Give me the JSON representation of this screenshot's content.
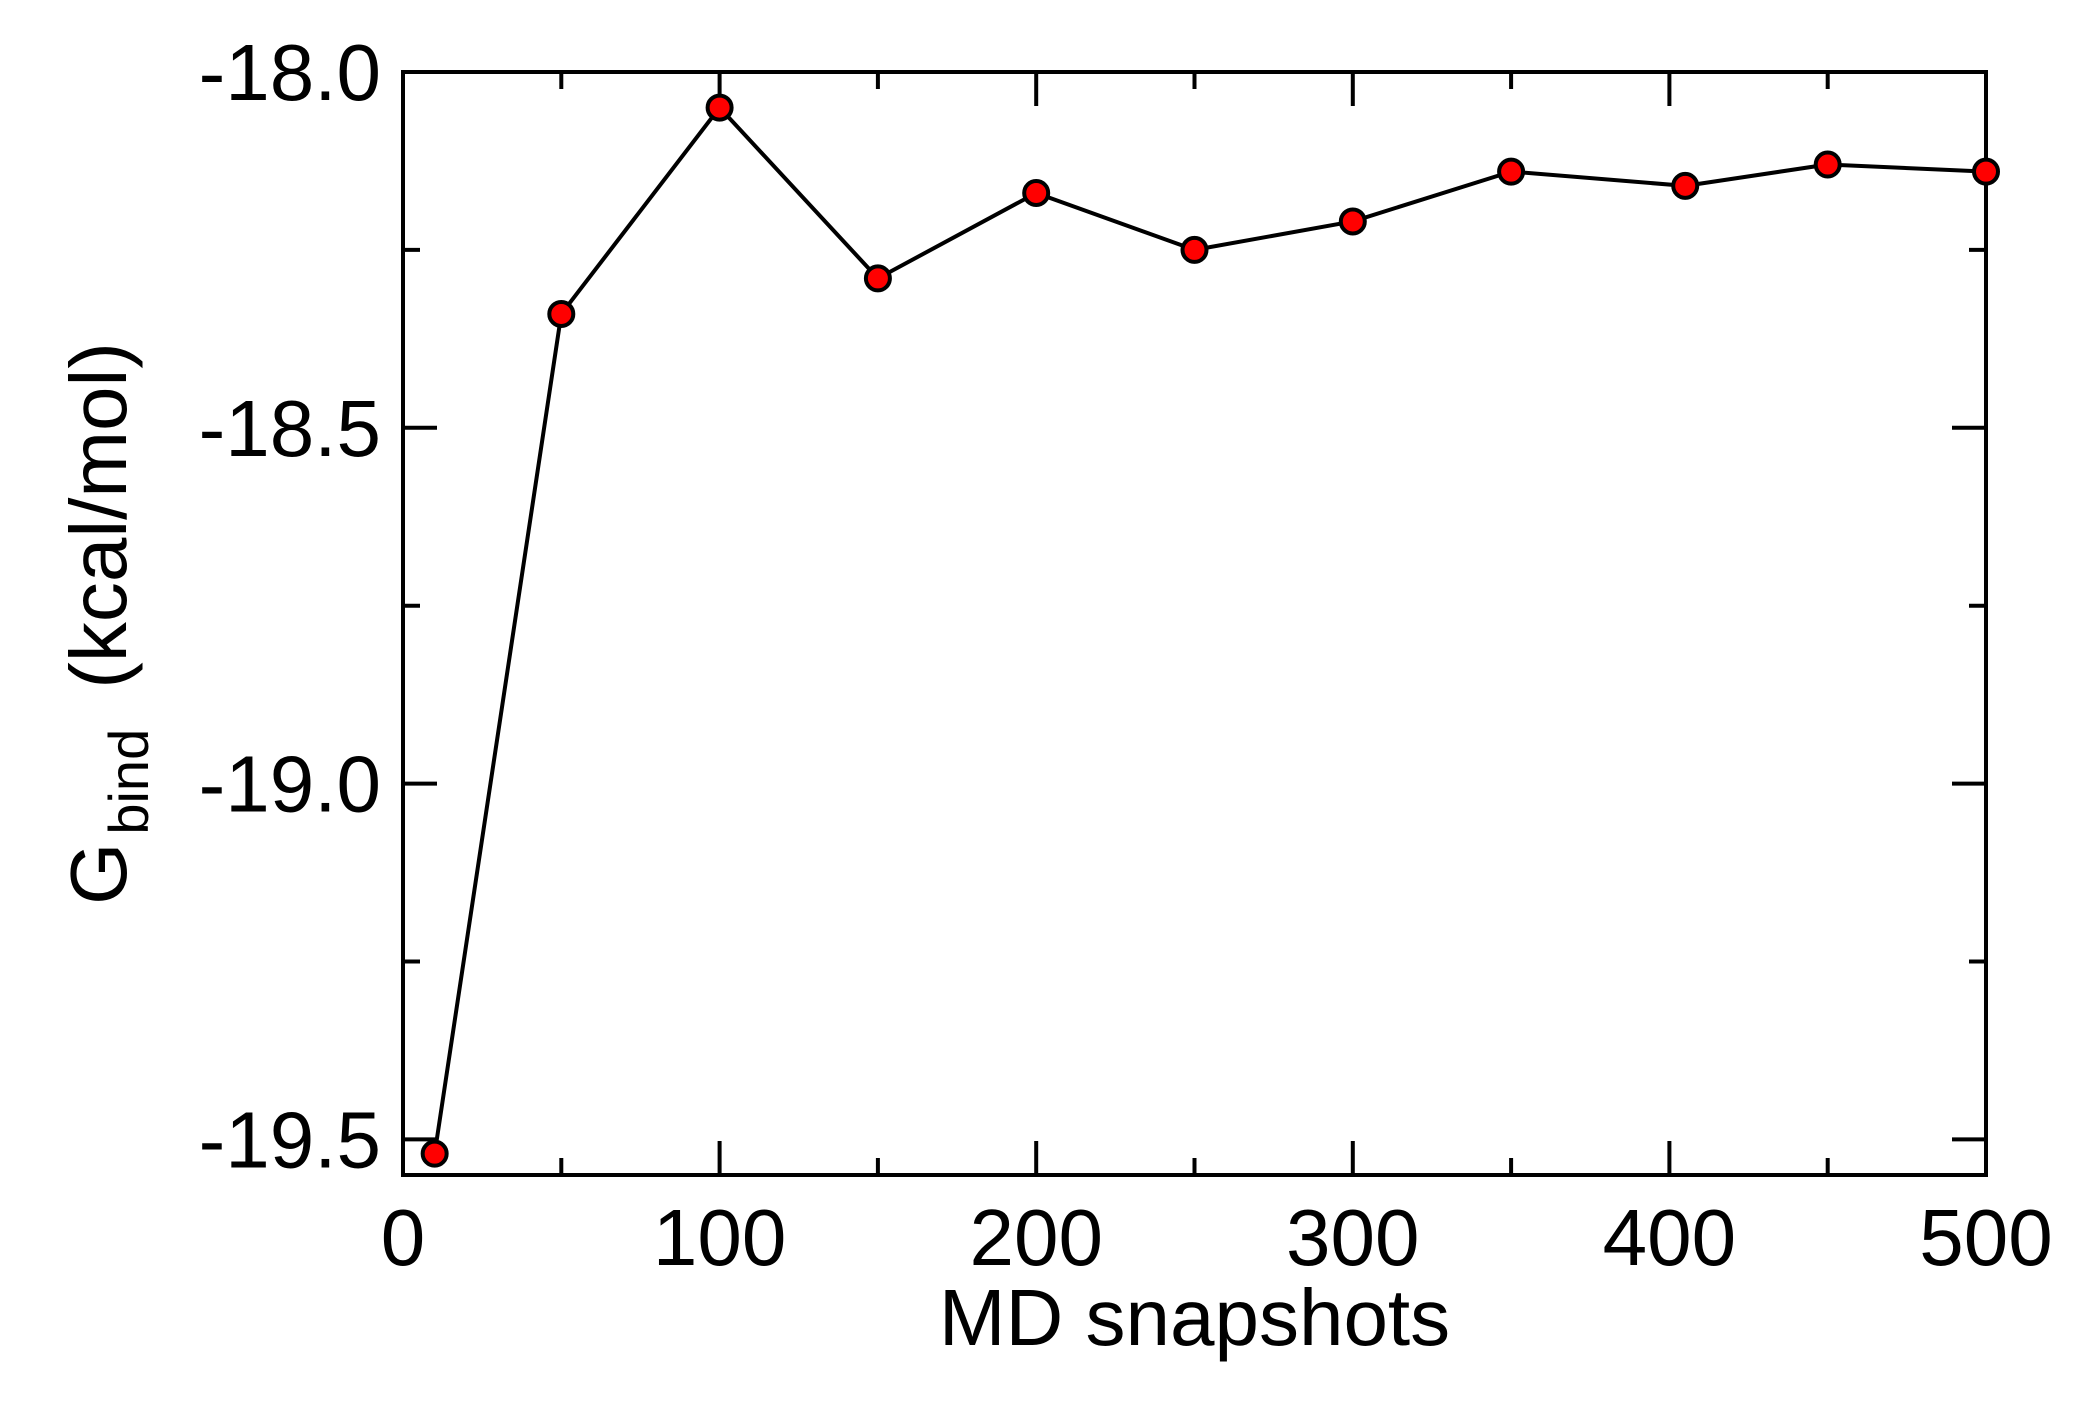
{
  "chart_data": {
    "type": "line",
    "x": [
      10,
      50,
      100,
      150,
      200,
      250,
      300,
      350,
      405,
      450,
      500
    ],
    "series": [
      {
        "values": [
          -19.52,
          -18.34,
          -18.05,
          -18.29,
          -18.17,
          -18.25,
          -18.21,
          -18.14,
          -18.16,
          -18.13,
          -18.14
        ]
      }
    ],
    "xlim": [
      0,
      500
    ],
    "ylim": [
      -19.55,
      -18.0
    ],
    "xticks": [
      0,
      100,
      200,
      300,
      400,
      500
    ],
    "yticks": [
      -18.0,
      -18.5,
      -19.0,
      -19.5
    ],
    "xticklabels": [
      "0",
      "100",
      "200",
      "300",
      "400",
      "500"
    ],
    "yticklabels": [
      "-18.0",
      "-18.5",
      "-19.0",
      "-19.5"
    ],
    "xlabel": "MD snapshots",
    "ylabel": {
      "main": "G",
      "subscript": "bind",
      "unit": "(kcal/mol)"
    },
    "grid": false,
    "line_color": "#000000",
    "marker_color": "#ff0000",
    "marker_edge_color": "#000000"
  }
}
